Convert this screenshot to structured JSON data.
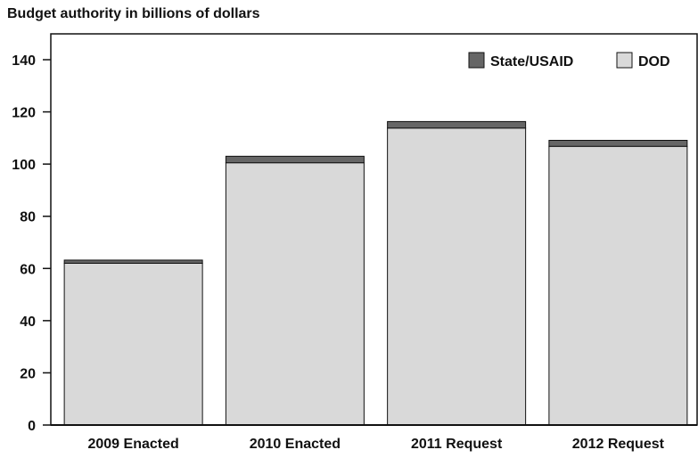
{
  "chart_data": {
    "type": "bar",
    "stacked": true,
    "title": "Budget authority in billions of dollars",
    "xlabel": "",
    "ylabel": "",
    "categories": [
      "2009 Enacted",
      "2010 Enacted",
      "2011 Request",
      "2012 Request"
    ],
    "series": [
      {
        "name": "DOD",
        "values": [
          62,
          100.5,
          113.8,
          106.8
        ],
        "color": "#d9d9d9"
      },
      {
        "name": "State/USAID",
        "values": [
          1.2,
          2.5,
          2.5,
          2.3
        ],
        "color": "#666666"
      }
    ],
    "legend_order": [
      "State/USAID",
      "DOD"
    ],
    "ylim": [
      0,
      150
    ],
    "yticks": [
      0,
      20,
      40,
      60,
      80,
      100,
      120,
      140
    ],
    "grid": false,
    "legend_position": "top-right"
  }
}
